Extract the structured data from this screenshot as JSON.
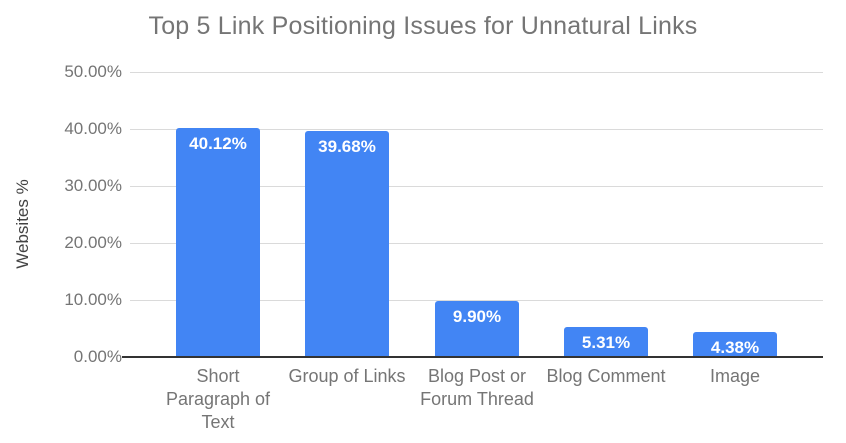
{
  "chart_data": {
    "type": "bar",
    "title": "Top 5 Link Positioning Issues for Unnatural Links",
    "xlabel": "",
    "ylabel": "Websites %",
    "categories": [
      "Short Paragraph of Text",
      "Group of Links",
      "Blog Post or Forum Thread",
      "Blog Comment",
      "Image"
    ],
    "values": [
      40.12,
      39.68,
      9.9,
      5.31,
      4.38
    ],
    "value_labels": [
      "40.12%",
      "39.68%",
      "9.90%",
      "5.31%",
      "4.38%"
    ],
    "ylim": [
      0,
      50
    ],
    "yticks": [
      0,
      10,
      20,
      30,
      40,
      50
    ],
    "ytick_labels": [
      "0.00%",
      "10.00%",
      "20.00%",
      "30.00%",
      "40.00%",
      "50.00%"
    ],
    "grid": true,
    "legend": "none",
    "colors": {
      "bar": "#4285f4",
      "value_label": "#ffffff",
      "grid_line": "#dadada",
      "axis_line": "#333333",
      "tick_text": "#757575",
      "category_text": "#757575",
      "title_text": "#757575",
      "axis_title_text": "#424242",
      "background": "#ffffff"
    }
  }
}
